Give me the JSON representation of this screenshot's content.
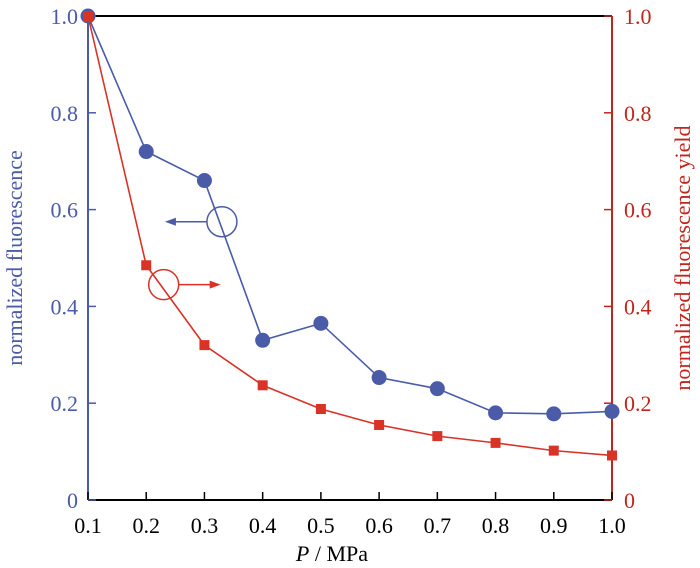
{
  "chart_data": {
    "type": "line",
    "xlabel_italic": "P",
    "xlabel_rest": " / MPa",
    "ylabel_left": "normalized fluorescence",
    "ylabel_right": "normalized fluorescence yield",
    "x": [
      0.1,
      0.2,
      0.3,
      0.4,
      0.5,
      0.6,
      0.7,
      0.8,
      0.9,
      1.0
    ],
    "xlim": [
      0.1,
      1.0
    ],
    "ylim_left": [
      0,
      1.0
    ],
    "ylim_right": [
      0,
      1.0
    ],
    "x_ticks": [
      "0.1",
      "0.2",
      "0.3",
      "0.4",
      "0.5",
      "0.6",
      "0.7",
      "0.8",
      "0.9",
      "1.0"
    ],
    "y_ticks_left": [
      {
        "value": 0,
        "label": "0"
      },
      {
        "value": 0.2,
        "label": "0.2"
      },
      {
        "value": 0.4,
        "label": "0.4"
      },
      {
        "value": 0.6,
        "label": "0.6"
      },
      {
        "value": 0.8,
        "label": "0.8"
      },
      {
        "value": 1.0,
        "label": "1.0"
      }
    ],
    "y_ticks_right": [
      {
        "value": 0,
        "label": "0"
      },
      {
        "value": 0.2,
        "label": "0.2"
      },
      {
        "value": 0.4,
        "label": "0.4"
      },
      {
        "value": 0.6,
        "label": "0.6"
      },
      {
        "value": 0.8,
        "label": "0.8"
      },
      {
        "value": 1.0,
        "label": "1.0"
      }
    ],
    "grid": false,
    "series": [
      {
        "axis": "left",
        "marker": "circle",
        "color": "#4a5ba8",
        "values": [
          1.0,
          0.72,
          0.66,
          0.33,
          0.365,
          0.253,
          0.23,
          0.18,
          0.178,
          0.183
        ]
      },
      {
        "axis": "right",
        "marker": "square",
        "color": "#d93328",
        "values": [
          1.0,
          0.485,
          0.32,
          0.237,
          0.188,
          0.155,
          0.132,
          0.118,
          0.102,
          0.092
        ]
      }
    ],
    "annotations": [
      {
        "kind": "circle-arrow",
        "direction": "left",
        "points_to_axis": "left",
        "color": "#4a5ba8",
        "at": [
          0.33,
          0.575
        ]
      },
      {
        "kind": "circle-arrow",
        "direction": "right",
        "points_to_axis": "right",
        "color": "#d93328",
        "at": [
          0.23,
          0.445
        ]
      }
    ],
    "axis_colors": {
      "bottom": "#000000",
      "left": "#4a5ba8",
      "right": "#c0261c"
    }
  }
}
